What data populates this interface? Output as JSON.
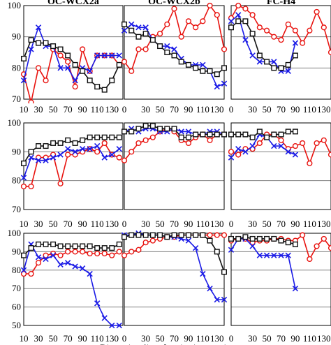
{
  "figure": {
    "column_titles": [
      "OC-WCX2a",
      "OC-WCX2b",
      "FC-H4"
    ],
    "xlabel": "Dimensionality of projection matrix"
  },
  "styles": {
    "red": {
      "color": "#e8130f",
      "marker": "circle"
    },
    "blue": {
      "color": "#1a1ae6",
      "marker": "x"
    },
    "black": {
      "color": "#111111",
      "marker": "square"
    }
  },
  "chart_data": [
    {
      "type": "line",
      "row": 0,
      "col": 0,
      "ylim": [
        70,
        100
      ],
      "yticks": [
        70,
        80,
        90,
        100
      ],
      "xlim": [
        10,
        145
      ],
      "xticks": [
        10,
        30,
        50,
        70,
        90,
        110,
        130
      ],
      "series": [
        {
          "style": "red",
          "x": [
            10,
            20,
            30,
            40,
            50,
            60,
            70,
            80,
            90,
            100,
            110,
            120,
            130,
            140
          ],
          "y": [
            78,
            69,
            80,
            76,
            86,
            84,
            82,
            74,
            86,
            79,
            84,
            84,
            84,
            81
          ]
        },
        {
          "style": "blue",
          "x": [
            10,
            20,
            30,
            40,
            50,
            60,
            70,
            80,
            90,
            100,
            110,
            120,
            130,
            140
          ],
          "y": [
            76,
            86,
            93,
            87,
            87,
            80,
            80,
            76,
            80,
            79,
            84,
            84,
            84,
            84
          ]
        },
        {
          "style": "black",
          "x": [
            10,
            20,
            30,
            40,
            50,
            60,
            70,
            80,
            90,
            100,
            110,
            120,
            130,
            140
          ],
          "y": [
            83,
            89,
            88,
            88,
            87,
            86,
            84,
            81,
            79,
            76,
            74,
            73,
            76,
            81
          ]
        }
      ]
    },
    {
      "type": "line",
      "row": 0,
      "col": 1,
      "ylim": [
        70,
        100
      ],
      "yticks": [
        70,
        80,
        90,
        100
      ],
      "xlim": [
        0,
        140
      ],
      "xticks": [
        0,
        30,
        50,
        70,
        90,
        110,
        130
      ],
      "series": [
        {
          "style": "red",
          "x": [
            0,
            10,
            20,
            30,
            40,
            50,
            60,
            70,
            80,
            90,
            100,
            110,
            120,
            130,
            140
          ],
          "y": [
            82,
            79,
            86,
            86,
            90,
            91,
            94,
            99,
            90,
            95,
            93,
            95,
            100,
            97,
            86
          ]
        },
        {
          "style": "blue",
          "x": [
            0,
            10,
            20,
            30,
            40,
            50,
            60,
            70,
            80,
            90,
            100,
            110,
            120,
            130,
            140
          ],
          "y": [
            92,
            94,
            93,
            93,
            89,
            87,
            87,
            86,
            83,
            81,
            81,
            81,
            79,
            74,
            75
          ]
        },
        {
          "style": "black",
          "x": [
            0,
            10,
            20,
            30,
            40,
            50,
            60,
            70,
            80,
            90,
            100,
            110,
            120,
            130,
            140
          ],
          "y": [
            94,
            92,
            90,
            91,
            89,
            87,
            85,
            84,
            82,
            81,
            80,
            79,
            79,
            78,
            80
          ]
        }
      ]
    },
    {
      "type": "line",
      "row": 0,
      "col": 2,
      "ylim": [
        70,
        100
      ],
      "yticks": [
        70,
        80,
        90,
        100
      ],
      "xlim": [
        0,
        140
      ],
      "xticks": [
        0,
        30,
        50,
        70,
        90,
        110,
        130
      ],
      "series": [
        {
          "style": "red",
          "x": [
            0,
            10,
            20,
            30,
            40,
            50,
            60,
            70,
            80,
            90,
            100,
            110,
            120,
            130,
            140
          ],
          "y": [
            96,
            100,
            99,
            97,
            93,
            92,
            90,
            89,
            94,
            92,
            88,
            92,
            98,
            93,
            85
          ]
        },
        {
          "style": "blue",
          "x": [
            0,
            10,
            20,
            30,
            40,
            50,
            60,
            70,
            80,
            90
          ],
          "y": [
            95,
            97,
            89,
            84,
            82,
            82,
            82,
            79,
            79,
            88
          ]
        },
        {
          "style": "black",
          "x": [
            0,
            10,
            20,
            30,
            40,
            50,
            60,
            70,
            80,
            90
          ],
          "y": [
            93,
            95,
            95,
            91,
            84,
            82,
            80,
            80,
            81,
            84
          ]
        }
      ]
    },
    {
      "type": "line",
      "row": 1,
      "col": 0,
      "ylim": [
        70,
        100
      ],
      "yticks": [
        70,
        80,
        90,
        100
      ],
      "xlim": [
        10,
        145
      ],
      "xticks": [
        10,
        30,
        50,
        70,
        90,
        110,
        130
      ],
      "series": [
        {
          "style": "red",
          "x": [
            10,
            20,
            30,
            40,
            50,
            60,
            70,
            80,
            90,
            100,
            110,
            120,
            130,
            140
          ],
          "y": [
            78,
            78,
            88,
            88,
            89,
            79,
            89,
            89,
            90,
            91,
            90,
            93,
            89,
            88
          ]
        },
        {
          "style": "blue",
          "x": [
            10,
            20,
            30,
            40,
            50,
            60,
            70,
            80,
            90,
            100,
            110,
            120,
            130,
            140
          ],
          "y": [
            81,
            88,
            87,
            87,
            88,
            89,
            91,
            90,
            91,
            91,
            92,
            88,
            89,
            91
          ]
        },
        {
          "style": "black",
          "x": [
            10,
            20,
            30,
            40,
            50,
            60,
            70,
            80,
            90,
            100,
            110,
            120,
            130,
            140
          ],
          "y": [
            86,
            90,
            92,
            92,
            93,
            93,
            94,
            93,
            94,
            95,
            95,
            95,
            95,
            95
          ]
        }
      ]
    },
    {
      "type": "line",
      "row": 1,
      "col": 1,
      "ylim": [
        70,
        100
      ],
      "yticks": [
        70,
        80,
        90,
        100
      ],
      "xlim": [
        0,
        140
      ],
      "xticks": [
        0,
        30,
        50,
        70,
        90,
        110,
        130
      ],
      "series": [
        {
          "style": "red",
          "x": [
            0,
            10,
            20,
            30,
            40,
            50,
            60,
            70,
            80,
            90,
            100,
            110,
            120,
            130,
            140
          ],
          "y": [
            87,
            90,
            93,
            94,
            95,
            97,
            98,
            97,
            94,
            93,
            95,
            96,
            94,
            96,
            96
          ]
        },
        {
          "style": "blue",
          "x": [
            0,
            10,
            20,
            30,
            40,
            50,
            60,
            70,
            80,
            90,
            100,
            110,
            120,
            130,
            140
          ],
          "y": [
            97,
            98,
            97,
            98,
            98,
            97,
            97,
            98,
            97,
            97,
            96,
            96,
            97,
            97,
            96
          ]
        },
        {
          "style": "black",
          "x": [
            0,
            10,
            20,
            30,
            40,
            50,
            60,
            70,
            80,
            90,
            100,
            110,
            120,
            130,
            140
          ],
          "y": [
            97,
            97,
            98,
            99,
            99,
            98,
            98,
            98,
            95,
            95,
            96,
            96,
            96,
            96,
            96
          ]
        }
      ]
    },
    {
      "type": "line",
      "row": 1,
      "col": 2,
      "ylim": [
        70,
        100
      ],
      "yticks": [
        70,
        80,
        90,
        100
      ],
      "xlim": [
        0,
        140
      ],
      "xticks": [
        0,
        30,
        50,
        70,
        90,
        110,
        130
      ],
      "series": [
        {
          "style": "red",
          "x": [
            0,
            10,
            20,
            30,
            40,
            50,
            60,
            70,
            80,
            90,
            100,
            110,
            120,
            130,
            140
          ],
          "y": [
            90,
            89,
            91,
            91,
            93,
            96,
            96,
            94,
            91,
            92,
            93,
            86,
            93,
            94,
            89
          ]
        },
        {
          "style": "blue",
          "x": [
            0,
            10,
            20,
            30,
            40,
            50,
            60,
            70,
            80,
            90
          ],
          "y": [
            88,
            91,
            90,
            92,
            96,
            95,
            92,
            92,
            90,
            89
          ]
        },
        {
          "style": "black",
          "x": [
            0,
            10,
            20,
            30,
            40,
            50,
            60,
            70,
            80,
            90
          ],
          "y": [
            96,
            96,
            96,
            95,
            97,
            95,
            96,
            96,
            97,
            97
          ]
        }
      ]
    },
    {
      "type": "line",
      "row": 2,
      "col": 0,
      "ylim": [
        50,
        100
      ],
      "yticks": [
        50,
        60,
        70,
        80,
        90,
        100
      ],
      "xlim": [
        10,
        145
      ],
      "xticks": [
        10,
        30,
        50,
        70,
        90,
        110,
        130
      ],
      "series": [
        {
          "style": "red",
          "x": [
            10,
            20,
            30,
            40,
            50,
            60,
            70,
            80,
            90,
            100,
            110,
            120,
            130,
            140
          ],
          "y": [
            78,
            78,
            84,
            88,
            89,
            88,
            90,
            90,
            90,
            89,
            89,
            89,
            88,
            90
          ]
        },
        {
          "style": "blue",
          "x": [
            10,
            20,
            30,
            40,
            50,
            60,
            70,
            80,
            90,
            100,
            110,
            120,
            130,
            140
          ],
          "y": [
            80,
            94,
            87,
            86,
            88,
            83,
            84,
            82,
            81,
            78,
            62,
            54,
            50,
            50
          ]
        },
        {
          "style": "black",
          "x": [
            10,
            20,
            30,
            40,
            50,
            60,
            70,
            80,
            90,
            100,
            110,
            120,
            130,
            140
          ],
          "y": [
            88,
            92,
            94,
            94,
            94,
            93,
            93,
            93,
            93,
            93,
            92,
            92,
            92,
            94
          ]
        }
      ]
    },
    {
      "type": "line",
      "row": 2,
      "col": 1,
      "ylim": [
        50,
        100
      ],
      "yticks": [
        50,
        60,
        70,
        80,
        90,
        100
      ],
      "xlim": [
        0,
        140
      ],
      "xticks": [
        0,
        30,
        50,
        70,
        90,
        110,
        130
      ],
      "series": [
        {
          "style": "red",
          "x": [
            0,
            10,
            20,
            30,
            40,
            50,
            60,
            70,
            80,
            90,
            100,
            110,
            120,
            130,
            140
          ],
          "y": [
            88,
            90,
            91,
            95,
            96,
            97,
            98,
            98,
            99,
            99,
            99,
            99,
            99,
            99,
            99
          ]
        },
        {
          "style": "blue",
          "x": [
            0,
            10,
            20,
            30,
            40,
            50,
            60,
            70,
            80,
            90,
            100,
            110,
            120,
            130,
            140
          ],
          "y": [
            99,
            99,
            100,
            99,
            99,
            99,
            98,
            98,
            97,
            96,
            92,
            78,
            70,
            64,
            64
          ]
        },
        {
          "style": "black",
          "x": [
            0,
            10,
            20,
            30,
            40,
            50,
            60,
            70,
            80,
            90,
            100,
            110,
            120,
            130,
            140
          ],
          "y": [
            98,
            99,
            99,
            99,
            99,
            99,
            98,
            99,
            99,
            99,
            99,
            99,
            96,
            90,
            79
          ]
        }
      ]
    },
    {
      "type": "line",
      "row": 2,
      "col": 2,
      "ylim": [
        50,
        100
      ],
      "yticks": [
        50,
        60,
        70,
        80,
        90,
        100
      ],
      "xlim": [
        0,
        140
      ],
      "xticks": [
        0,
        30,
        50,
        70,
        90,
        110,
        130
      ],
      "series": [
        {
          "style": "red",
          "x": [
            0,
            10,
            20,
            30,
            40,
            50,
            60,
            70,
            80,
            90,
            100,
            110,
            120,
            130,
            140
          ],
          "y": [
            96,
            97,
            97,
            95,
            96,
            96,
            97,
            97,
            96,
            96,
            99,
            86,
            93,
            97,
            92
          ]
        },
        {
          "style": "blue",
          "x": [
            0,
            10,
            20,
            30,
            40,
            50,
            60,
            70,
            80,
            90
          ],
          "y": [
            91,
            97,
            97,
            93,
            88,
            88,
            88,
            88,
            88,
            70
          ]
        },
        {
          "style": "black",
          "x": [
            0,
            10,
            20,
            30,
            40,
            50,
            60,
            70,
            80,
            90
          ],
          "y": [
            97,
            97,
            98,
            97,
            97,
            97,
            97,
            96,
            95,
            94
          ]
        }
      ]
    }
  ]
}
